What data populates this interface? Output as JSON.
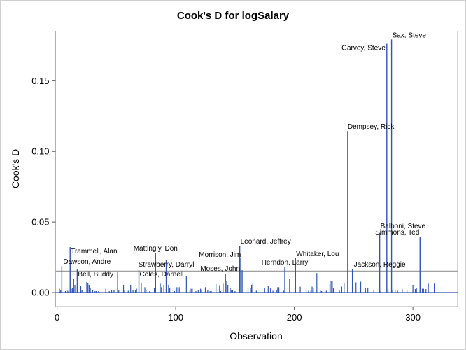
{
  "chart_data": {
    "type": "bar",
    "style": "needle",
    "title": "Cook's D for logSalary",
    "xlabel": "Observation",
    "ylabel": "Cook's D",
    "xlim": [
      -1.24,
      337.7
    ],
    "ylim": [
      -0.0099,
      0.1851
    ],
    "xticks": [
      0,
      100,
      200,
      300
    ],
    "xtick_labels": [
      "0",
      "100",
      "200",
      "300"
    ],
    "yticks": [
      0,
      0.05,
      0.1,
      0.15
    ],
    "ytick_labels": [
      "0.00",
      "0.05",
      "0.10",
      "0.15"
    ],
    "grid": false,
    "reference_line": 0.0152,
    "needle_color": "#2F55B5",
    "labeled_points": [
      {
        "obs": 4,
        "value": 0.0188,
        "label": "Dawson, Andre"
      },
      {
        "obs": 11,
        "value": 0.0322,
        "label": "Trammell, Alan"
      },
      {
        "obs": 17,
        "value": 0.0163,
        "label": "Bell, Buddy"
      },
      {
        "obs": 69,
        "value": 0.0158,
        "label": "Coles, Darnell"
      },
      {
        "obs": 83,
        "value": 0.0282,
        "label": "Mattingly, Don"
      },
      {
        "obs": 92,
        "value": 0.0233,
        "label": "Strawberry, Darryl"
      },
      {
        "obs": 154,
        "value": 0.0332,
        "label": "Leonard, Jeffrey"
      },
      {
        "obs": 155,
        "value": 0.0243,
        "label": "Morrison, Jim"
      },
      {
        "obs": 156,
        "value": 0.0158,
        "label": "Moses, John"
      },
      {
        "obs": 192,
        "value": 0.0183,
        "label": "Herndon, Larry"
      },
      {
        "obs": 201,
        "value": 0.0243,
        "label": "Whitaker, Lou"
      },
      {
        "obs": 245,
        "value": 0.1144,
        "label": "Dempsey, Rick"
      },
      {
        "obs": 249,
        "value": 0.0168,
        "label": "Jackson, Reggie"
      },
      {
        "obs": 272,
        "value": 0.0421,
        "label": "Balboni, Steve"
      },
      {
        "obs": 278,
        "value": 0.1762,
        "label": "Garvey, Steve"
      },
      {
        "obs": 282,
        "value": 0.1792,
        "label": "Sax, Steve"
      },
      {
        "obs": 306,
        "value": 0.0396,
        "label": "Simmons, Ted"
      }
    ],
    "points": [
      [
        2,
        0.0027
      ],
      [
        3,
        0.002
      ],
      [
        7,
        0.001
      ],
      [
        9,
        0.0013
      ],
      [
        12,
        0.0027
      ],
      [
        13,
        0.0035
      ],
      [
        14,
        0.0096
      ],
      [
        15,
        0.0055
      ],
      [
        20,
        0.0047
      ],
      [
        21,
        0.0018
      ],
      [
        25,
        0.0075
      ],
      [
        26,
        0.0068
      ],
      [
        27,
        0.0055
      ],
      [
        28,
        0.0035
      ],
      [
        30,
        0.002
      ],
      [
        32,
        0.001
      ],
      [
        33,
        0.001
      ],
      [
        35,
        0.001
      ],
      [
        41,
        0.0027
      ],
      [
        44,
        0.001
      ],
      [
        46,
        0.0018
      ],
      [
        48,
        0.0018
      ],
      [
        51,
        0.0143
      ],
      [
        52,
        0.0017
      ],
      [
        56,
        0.0055
      ],
      [
        57,
        0.002
      ],
      [
        60,
        0.0013
      ],
      [
        62,
        0.0055
      ],
      [
        64,
        0.0018
      ],
      [
        66,
        0.002
      ],
      [
        67,
        0.0027
      ],
      [
        71,
        0.0068
      ],
      [
        74,
        0.0038
      ],
      [
        75,
        0.0018
      ],
      [
        78,
        0.001
      ],
      [
        82,
        0.0035
      ],
      [
        87,
        0.0063
      ],
      [
        88,
        0.0038
      ],
      [
        90,
        0.0055
      ],
      [
        94,
        0.0055
      ],
      [
        95,
        0.0035
      ],
      [
        99,
        0.001
      ],
      [
        101,
        0.0038
      ],
      [
        103,
        0.0038
      ],
      [
        109,
        0.0116
      ],
      [
        112,
        0.0018
      ],
      [
        113,
        0.0027
      ],
      [
        114,
        0.0027
      ],
      [
        117,
        0.001
      ],
      [
        119,
        0.0018
      ],
      [
        121,
        0.0027
      ],
      [
        122,
        0.0018
      ],
      [
        125,
        0.0038
      ],
      [
        127,
        0.002
      ],
      [
        129,
        0.001
      ],
      [
        130,
        0.001
      ],
      [
        134,
        0.006
      ],
      [
        137,
        0.0052
      ],
      [
        138,
        0.001
      ],
      [
        140,
        0.0063
      ],
      [
        142,
        0.013
      ],
      [
        143,
        0.008
      ],
      [
        144,
        0.0055
      ],
      [
        146,
        0.003
      ],
      [
        147,
        0.002
      ],
      [
        148,
        0.0018
      ],
      [
        150,
        0.001
      ],
      [
        161,
        0.003
      ],
      [
        163,
        0.0035
      ],
      [
        164,
        0.0055
      ],
      [
        165,
        0.0063
      ],
      [
        168,
        0.0013
      ],
      [
        175,
        0.003
      ],
      [
        178,
        0.0047
      ],
      [
        180,
        0.003
      ],
      [
        182,
        0.0013
      ],
      [
        185,
        0.0018
      ],
      [
        186,
        0.0038
      ],
      [
        187,
        0.0038
      ],
      [
        191,
        0.0013
      ],
      [
        196,
        0.0096
      ],
      [
        205,
        0.0042
      ],
      [
        210,
        0.0018
      ],
      [
        212,
        0.0013
      ],
      [
        214,
        0.002
      ],
      [
        215,
        0.0042
      ],
      [
        216,
        0.003
      ],
      [
        219,
        0.0138
      ],
      [
        222,
        0.0013
      ],
      [
        223,
        0.001
      ],
      [
        227,
        0.0013
      ],
      [
        230,
        0.0058
      ],
      [
        231,
        0.008
      ],
      [
        232,
        0.008
      ],
      [
        233,
        0.003
      ],
      [
        238,
        0.0018
      ],
      [
        240,
        0.0042
      ],
      [
        242,
        0.0067
      ],
      [
        252,
        0.0072
      ],
      [
        256,
        0.0077
      ],
      [
        260,
        0.0035
      ],
      [
        262,
        0.0035
      ],
      [
        267,
        0.0018
      ],
      [
        273,
        0.001
      ],
      [
        279,
        0.0025
      ],
      [
        283,
        0.002
      ],
      [
        285,
        0.0018
      ],
      [
        287,
        0.0013
      ],
      [
        291,
        0.0025
      ],
      [
        295,
        0.002
      ],
      [
        300,
        0.0055
      ],
      [
        302,
        0.0025
      ],
      [
        303,
        0.003
      ],
      [
        308,
        0.0027
      ],
      [
        309,
        0.0027
      ],
      [
        311,
        0.0025
      ],
      [
        313,
        0.0063
      ],
      [
        318,
        0.0063
      ]
    ]
  }
}
